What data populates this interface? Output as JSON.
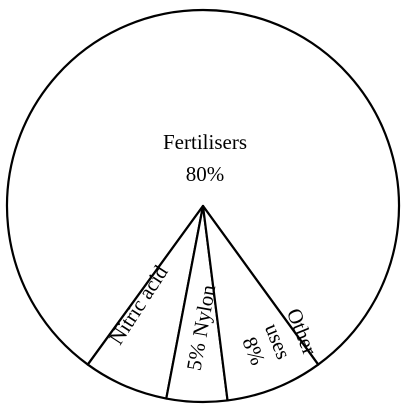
{
  "chart_data": {
    "type": "pie",
    "categories": [
      "Fertilisers",
      "Nitric acid",
      "Nylon",
      "Other uses"
    ],
    "values": [
      80,
      7,
      5,
      8
    ],
    "value_labels": [
      "80%",
      null,
      "5%",
      "8%"
    ],
    "color": "#ffffff"
  }
}
